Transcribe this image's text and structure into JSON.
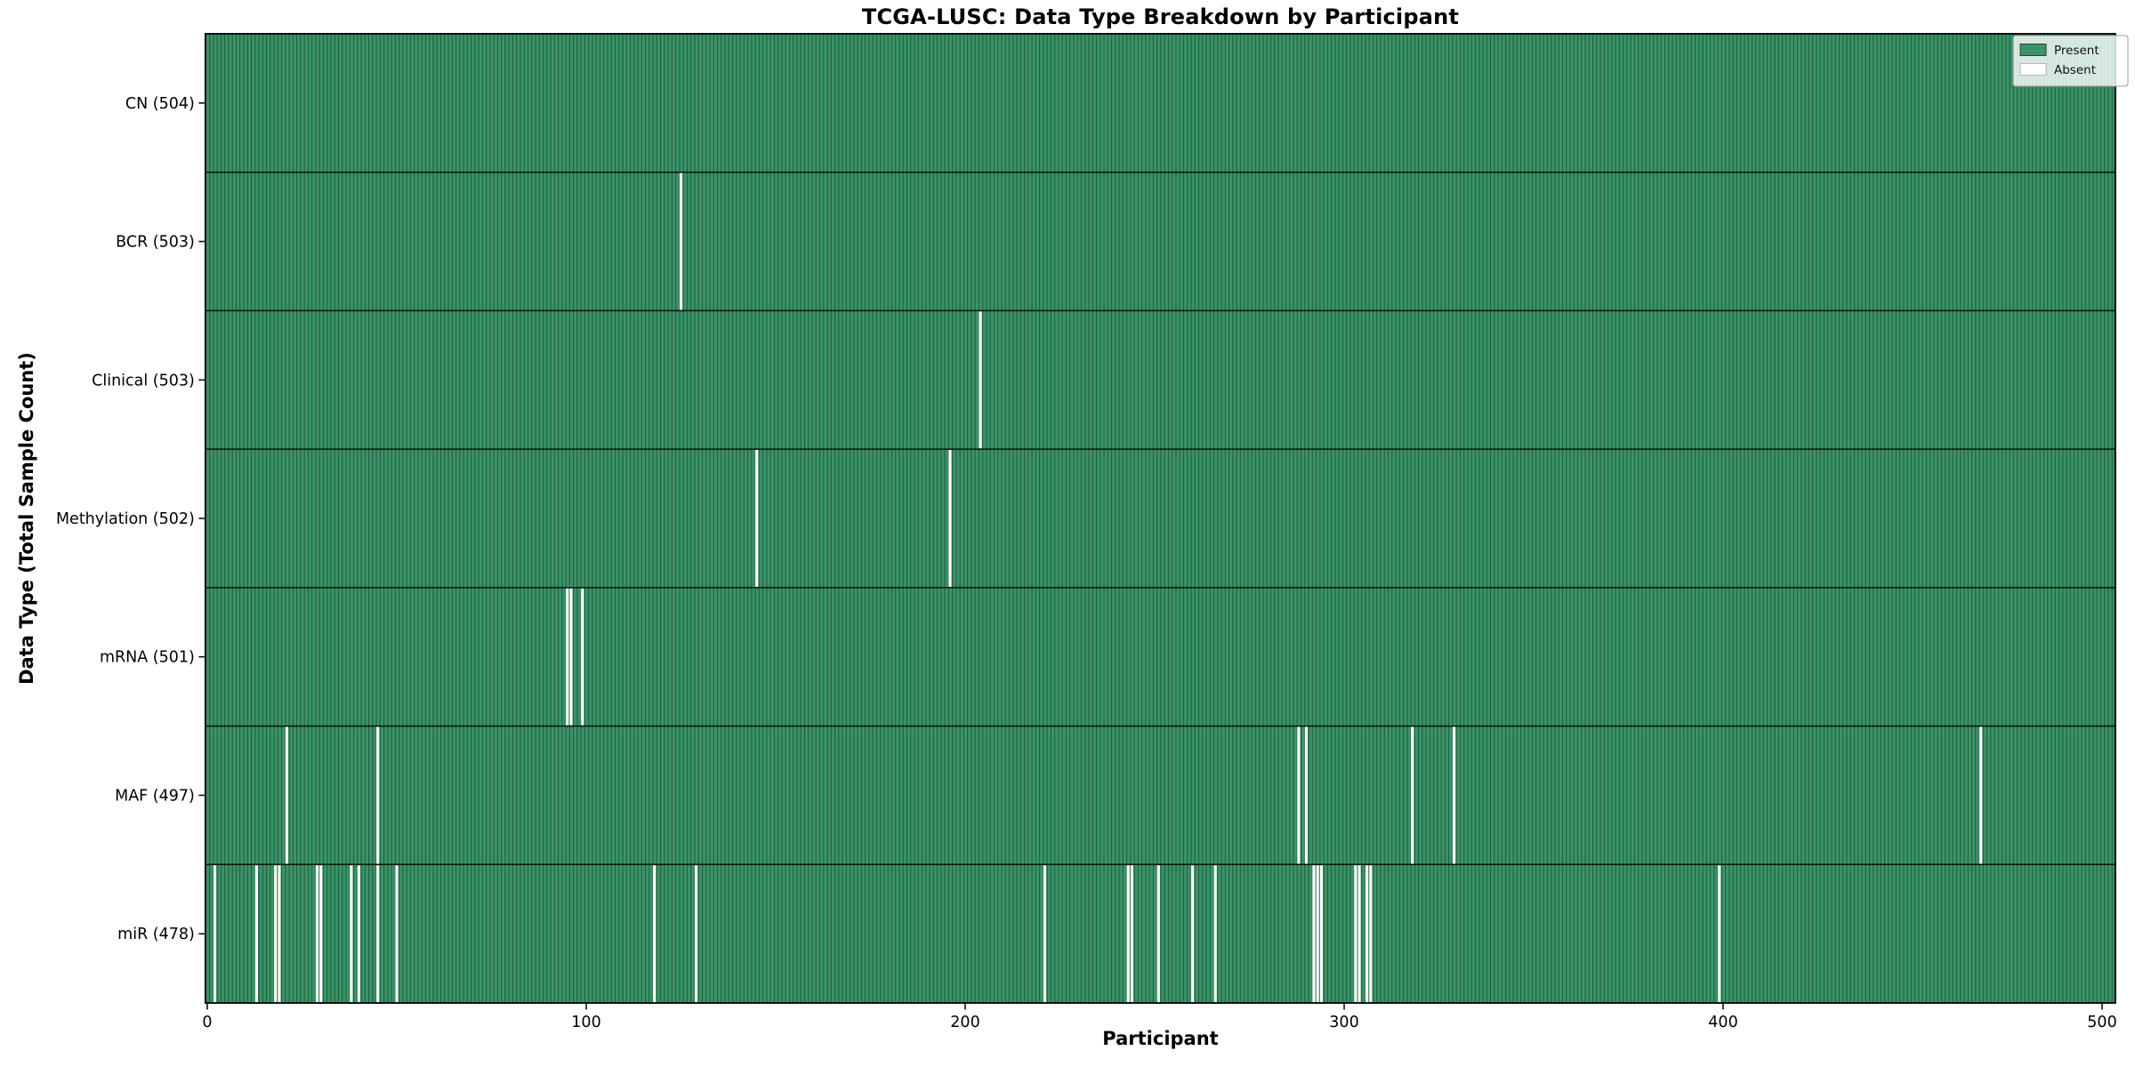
{
  "chart_data": {
    "type": "heatmap",
    "title": "TCGA-LUSC: Data Type Breakdown by Participant",
    "xlabel": "Participant",
    "ylabel": "Data Type (Total Sample Count)",
    "x_ticks": [
      0,
      100,
      200,
      300,
      400,
      500
    ],
    "n_participants": 504,
    "grid": false,
    "legend": {
      "position": "upper-right",
      "entries": [
        {
          "label": "Present",
          "swatch": "present"
        },
        {
          "label": "Absent",
          "swatch": "absent"
        }
      ]
    },
    "rows": [
      {
        "data_type": "CN",
        "label": "CN (504)",
        "total": 504,
        "absent_participants": []
      },
      {
        "data_type": "BCR",
        "label": "BCR (503)",
        "total": 503,
        "absent_participants": [
          125
        ]
      },
      {
        "data_type": "Clinical",
        "label": "Clinical (503)",
        "total": 503,
        "absent_participants": [
          204
        ]
      },
      {
        "data_type": "Methylation",
        "label": "Methylation (502)",
        "total": 502,
        "absent_participants": [
          145,
          196
        ]
      },
      {
        "data_type": "mRNA",
        "label": "mRNA (501)",
        "total": 501,
        "absent_participants": [
          95,
          96,
          99
        ]
      },
      {
        "data_type": "MAF",
        "label": "MAF (497)",
        "total": 497,
        "absent_participants": [
          21,
          45,
          288,
          290,
          318,
          329,
          468
        ]
      },
      {
        "data_type": "miR",
        "label": "miR (478)",
        "total": 478,
        "absent_participants": [
          2,
          13,
          18,
          19,
          29,
          30,
          38,
          40,
          45,
          50,
          118,
          129,
          221,
          243,
          244,
          251,
          260,
          266,
          292,
          293,
          294,
          303,
          304,
          306,
          307,
          399
        ]
      }
    ],
    "colors": {
      "present": "#3b9468",
      "present_edge": "#1f5c3c",
      "absent": "#ffffff",
      "frame": "#000000",
      "text": "#000000",
      "legend_border": "#999999"
    }
  }
}
